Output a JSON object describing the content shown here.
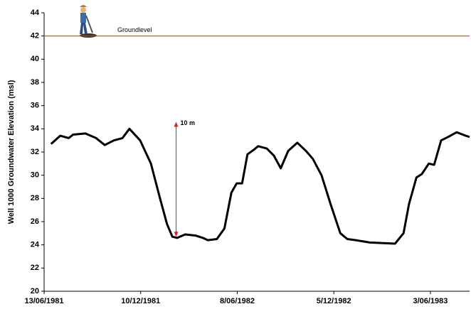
{
  "chart_data": {
    "type": "line",
    "y_label": "Well 1000 Groundwater Elevation (msl)",
    "color": "#000000",
    "x": [
      "1981-06-26",
      "1981-07-13",
      "1981-07-29",
      "1981-08-06",
      "1981-08-29",
      "1981-09-18",
      "1981-10-04",
      "1981-10-21",
      "1981-11-06",
      "1981-11-19",
      "1981-12-09",
      "1981-12-29",
      "1982-01-15",
      "1982-01-28",
      "1982-02-07",
      "1982-02-16",
      "1982-03-03",
      "1982-03-22",
      "1982-04-05",
      "1982-04-14",
      "1982-05-01",
      "1982-05-15",
      "1982-05-28",
      "1982-06-07",
      "1982-06-17",
      "1982-06-27",
      "1982-07-09",
      "1982-07-17",
      "1982-08-02",
      "1982-08-15",
      "1982-08-28",
      "1982-09-11",
      "1982-09-28",
      "1982-10-14",
      "1982-10-27",
      "1982-11-12",
      "1982-11-29",
      "1982-12-17",
      "1982-12-30",
      "1983-01-15",
      "1983-02-10",
      "1983-03-29",
      "1983-04-14",
      "1983-04-24",
      "1983-05-08",
      "1983-05-18",
      "1983-05-31",
      "1983-06-10",
      "1983-06-23",
      "1983-07-06",
      "1983-07-22",
      "1983-08-08",
      "1983-08-15"
    ],
    "values": [
      32.7,
      33.4,
      33.2,
      33.5,
      33.6,
      33.2,
      32.6,
      33.0,
      33.2,
      34.0,
      33.0,
      31.0,
      28.0,
      25.8,
      24.7,
      24.6,
      24.9,
      24.8,
      24.6,
      24.4,
      24.5,
      25.4,
      28.5,
      29.3,
      29.3,
      31.8,
      32.2,
      32.5,
      32.3,
      31.7,
      30.6,
      32.1,
      32.8,
      32.1,
      31.4,
      30.0,
      27.5,
      25.0,
      24.5,
      24.4,
      24.2,
      24.1,
      25.0,
      27.5,
      29.8,
      30.1,
      31.0,
      30.9,
      33.0,
      33.3,
      33.7,
      33.4,
      33.3
    ],
    "xlim": [
      "1981-06-13",
      "1983-08-15"
    ],
    "xticks": [
      {
        "value": "1981-06-13",
        "label": "13/06/1981"
      },
      {
        "value": "1981-12-10",
        "label": "10/12/1981"
      },
      {
        "value": "1982-06-08",
        "label": "8/06/1982"
      },
      {
        "value": "1982-12-05",
        "label": "5/12/1982"
      },
      {
        "value": "1983-06-03",
        "label": "3/06/1983"
      }
    ],
    "ylim": [
      20,
      44
    ],
    "yticks": [
      20,
      22,
      24,
      26,
      28,
      30,
      32,
      34,
      36,
      38,
      40,
      42,
      44
    ],
    "grid": false,
    "reference_line": {
      "label": "Groundlevel",
      "value": 42,
      "color": "#a0522d"
    },
    "arrow": {
      "label": "10 m",
      "x": "1982-02-14",
      "from": 24.7,
      "to": 34.6,
      "color": "#e02020"
    }
  }
}
